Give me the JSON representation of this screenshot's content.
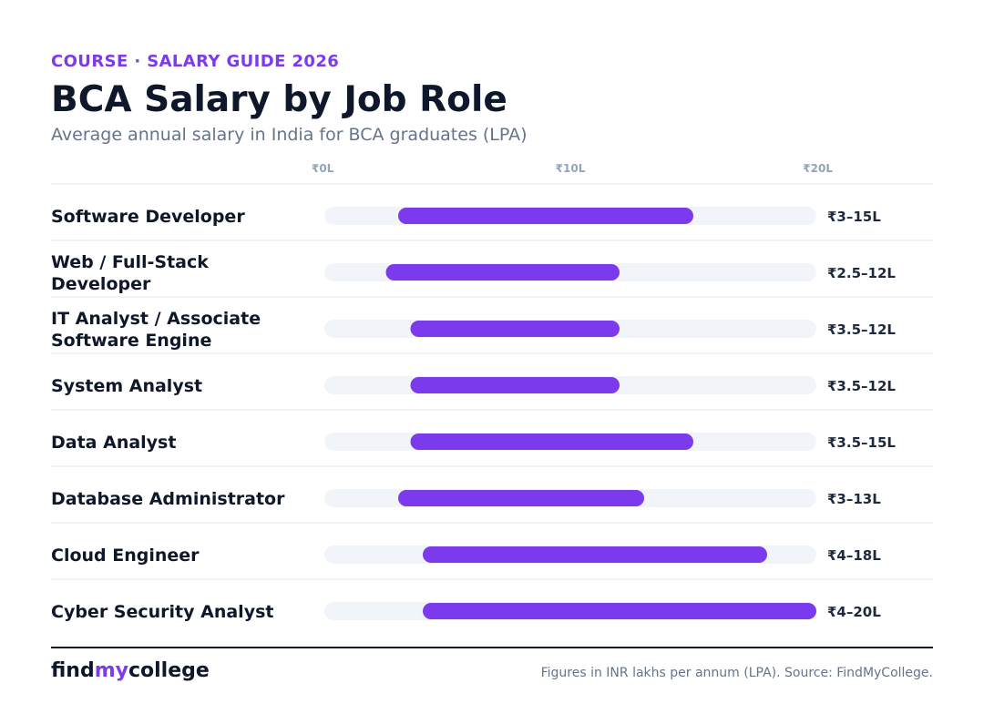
{
  "header": {
    "eyebrow": "COURSE · SALARY GUIDE 2026",
    "title": "BCA Salary by Job Role",
    "subtitle": "Average annual salary in India for BCA graduates (LPA)"
  },
  "chart_data": {
    "type": "bar",
    "subtype": "floating-range-horizontal",
    "unit": "LPA",
    "xlim": [
      0,
      20
    ],
    "ticks": [
      0,
      10,
      20
    ],
    "tick_labels": [
      "₹0L",
      "₹10L",
      "₹20L"
    ],
    "grid": false,
    "colors": {
      "bar": "#7c3aed",
      "track": "#f1f5f9",
      "divider": "#e2e8f0"
    },
    "categories": [
      {
        "label_lines": [
          "Software Developer"
        ],
        "min": 3,
        "max": 15,
        "value_label": "₹3–15L"
      },
      {
        "label_lines": [
          "Web / Full-Stack",
          "Developer"
        ],
        "min": 2.5,
        "max": 12,
        "value_label": "₹2.5–12L"
      },
      {
        "label_lines": [
          "IT Analyst / Associate",
          "Software Engine"
        ],
        "min": 3.5,
        "max": 12,
        "value_label": "₹3.5–12L"
      },
      {
        "label_lines": [
          "System Analyst"
        ],
        "min": 3.5,
        "max": 12,
        "value_label": "₹3.5–12L"
      },
      {
        "label_lines": [
          "Data Analyst"
        ],
        "min": 3.5,
        "max": 15,
        "value_label": "₹3.5–15L"
      },
      {
        "label_lines": [
          "Database Administrator"
        ],
        "min": 3,
        "max": 13,
        "value_label": "₹3–13L"
      },
      {
        "label_lines": [
          "Cloud Engineer"
        ],
        "min": 4,
        "max": 18,
        "value_label": "₹4–18L"
      },
      {
        "label_lines": [
          "Cyber Security Analyst"
        ],
        "min": 4,
        "max": 20,
        "value_label": "₹4–20L"
      }
    ]
  },
  "footer": {
    "brand_part1": "find",
    "brand_part2": "my",
    "brand_part3": "college",
    "note": "Figures in INR lakhs per annum (LPA). Source: FindMyCollege."
  }
}
